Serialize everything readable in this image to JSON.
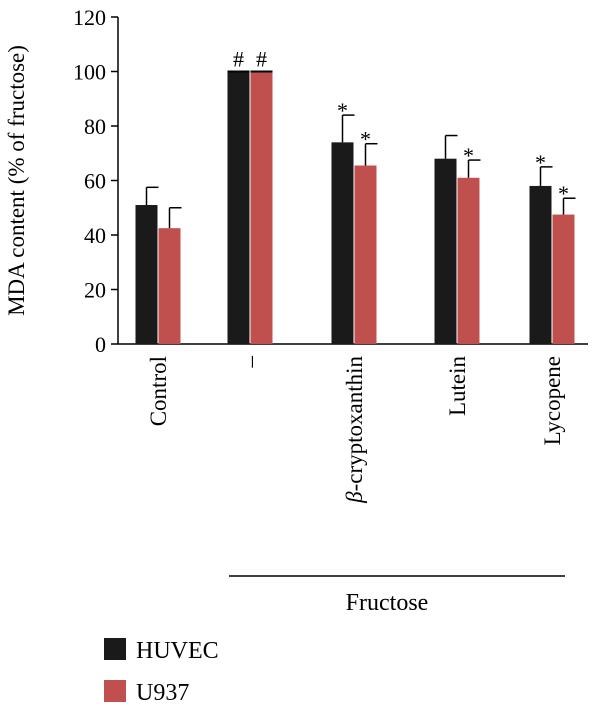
{
  "chart_data": {
    "type": "bar",
    "ylabel": "MDA content (% of fructose)",
    "ylim": [
      0,
      120
    ],
    "yticks": [
      0,
      20,
      40,
      60,
      80,
      100,
      120
    ],
    "categories": [
      "Control",
      "–",
      "β-cryptoxanthin",
      "Lutein",
      "Lycopene"
    ],
    "category_group": {
      "label": "Fructose",
      "categories": [
        "–",
        "β-cryptoxanthin",
        "Lutein",
        "Lycopene"
      ]
    },
    "series": [
      {
        "name": "HUVEC",
        "color": "#1a1a1a",
        "values": [
          51,
          100,
          74,
          68,
          58
        ],
        "errors": [
          6.5,
          0,
          10,
          8.5,
          7
        ],
        "annotations": [
          "",
          "#",
          "*",
          "",
          "*"
        ]
      },
      {
        "name": "U937",
        "color": "#c0504d",
        "values": [
          42.5,
          100,
          65.5,
          61,
          47.5
        ],
        "errors": [
          7.5,
          0,
          8,
          6.5,
          6
        ],
        "annotations": [
          "",
          "#",
          "*",
          "*",
          "*"
        ]
      }
    ],
    "legend_position": "bottom-left",
    "grid": false
  }
}
